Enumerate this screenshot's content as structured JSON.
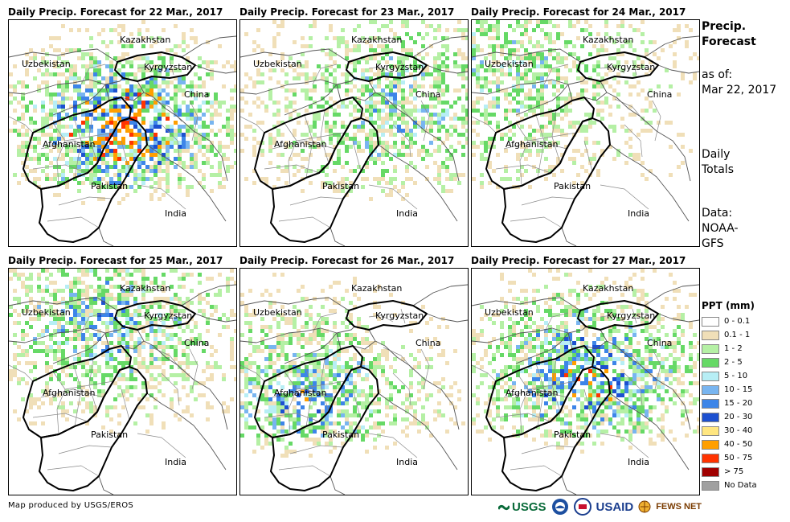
{
  "panels": [
    {
      "title": "Daily Precip. Forecast for 22 Mar., 2017",
      "intensity": 1.0,
      "bias": "center"
    },
    {
      "title": "Daily Precip. Forecast for 23 Mar., 2017",
      "intensity": 0.45,
      "bias": "east"
    },
    {
      "title": "Daily Precip. Forecast for 24 Mar., 2017",
      "intensity": 0.35,
      "bias": "northwest"
    },
    {
      "title": "Daily Precip. Forecast for 25 Mar., 2017",
      "intensity": 0.55,
      "bias": "north"
    },
    {
      "title": "Daily Precip. Forecast for 26 Mar., 2017",
      "intensity": 0.6,
      "bias": "west"
    },
    {
      "title": "Daily Precip. Forecast for 27 Mar., 2017",
      "intensity": 0.8,
      "bias": "center"
    }
  ],
  "countries": {
    "kazakhstan": "Kazakhstan",
    "uzbekistan": "Uzbekistan",
    "kyrgyzstan": "Kyrgyzstan",
    "china": "China",
    "afghanistan": "Afghanistan",
    "pakistan": "Pakistan",
    "india": "India"
  },
  "side": {
    "title_line1": "Precip.",
    "title_line2": "Forecast",
    "asof_line1": "as of:",
    "asof_line2": "Mar 22, 2017",
    "totals_line1": "Daily",
    "totals_line2": "Totals",
    "data_line1": "Data:",
    "data_line2": "NOAA-",
    "data_line3": "GFS"
  },
  "legend": {
    "title": "PPT (mm)",
    "items": [
      {
        "label": "0 - 0.1",
        "color": "#ffffff"
      },
      {
        "label": "0.1 - 1",
        "color": "#f0dfb8"
      },
      {
        "label": "1 - 2",
        "color": "#b5f0a5"
      },
      {
        "label": "2 - 5",
        "color": "#66d966"
      },
      {
        "label": "5 - 10",
        "color": "#b7eef5"
      },
      {
        "label": "10 - 15",
        "color": "#78b5f0"
      },
      {
        "label": "15 - 20",
        "color": "#3d85e8"
      },
      {
        "label": "20 - 30",
        "color": "#1c50d0"
      },
      {
        "label": "30 - 40",
        "color": "#ffe680"
      },
      {
        "label": "40 - 50",
        "color": "#ff9f00"
      },
      {
        "label": "50 - 75",
        "color": "#ff3300"
      },
      {
        "label": "> 75",
        "color": "#a00000"
      },
      {
        "label": "No Data",
        "color": "#a0a0a0"
      }
    ]
  },
  "credit": "Map produced by USGS/EROS",
  "logos": {
    "usgs": "USGS",
    "usaid": "USAID",
    "fewsnet": "FEWS NET"
  }
}
